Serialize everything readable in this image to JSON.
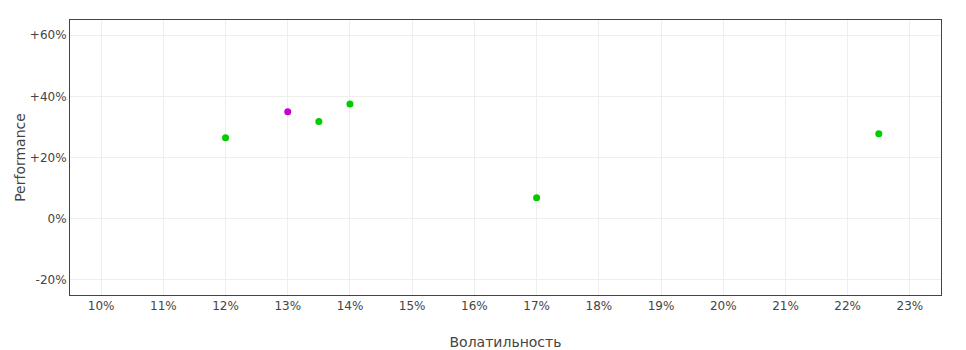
{
  "chart_data": {
    "type": "scatter",
    "xlabel": "Волатильность",
    "ylabel": "Performance",
    "x": [
      0.12,
      0.13,
      0.135,
      0.14,
      0.17,
      0.225
    ],
    "y": [
      0.265,
      0.35,
      0.318,
      0.375,
      0.068,
      0.278
    ],
    "colors": [
      "#00cc00",
      "#cc00cc",
      "#00cc00",
      "#00cc00",
      "#00cc00",
      "#00cc00"
    ],
    "xlim": [
      0.095,
      0.235
    ],
    "ylim": [
      -0.25,
      0.65
    ],
    "xticks": [
      {
        "value": 0.1,
        "label": "10%"
      },
      {
        "value": 0.11,
        "label": "11%"
      },
      {
        "value": 0.12,
        "label": "12%"
      },
      {
        "value": 0.13,
        "label": "13%"
      },
      {
        "value": 0.14,
        "label": "14%"
      },
      {
        "value": 0.15,
        "label": "15%"
      },
      {
        "value": 0.16,
        "label": "16%"
      },
      {
        "value": 0.17,
        "label": "17%"
      },
      {
        "value": 0.18,
        "label": "18%"
      },
      {
        "value": 0.19,
        "label": "19%"
      },
      {
        "value": 0.2,
        "label": "20%"
      },
      {
        "value": 0.21,
        "label": "21%"
      },
      {
        "value": 0.22,
        "label": "22%"
      },
      {
        "value": 0.23,
        "label": "23%"
      }
    ],
    "yticks": [
      {
        "value": -0.2,
        "label": "-20%"
      },
      {
        "value": 0.0,
        "label": "0%"
      },
      {
        "value": 0.2,
        "label": "+20%"
      },
      {
        "value": 0.4,
        "label": "+40%"
      },
      {
        "value": 0.6,
        "label": "+60%"
      }
    ],
    "grid": true
  }
}
